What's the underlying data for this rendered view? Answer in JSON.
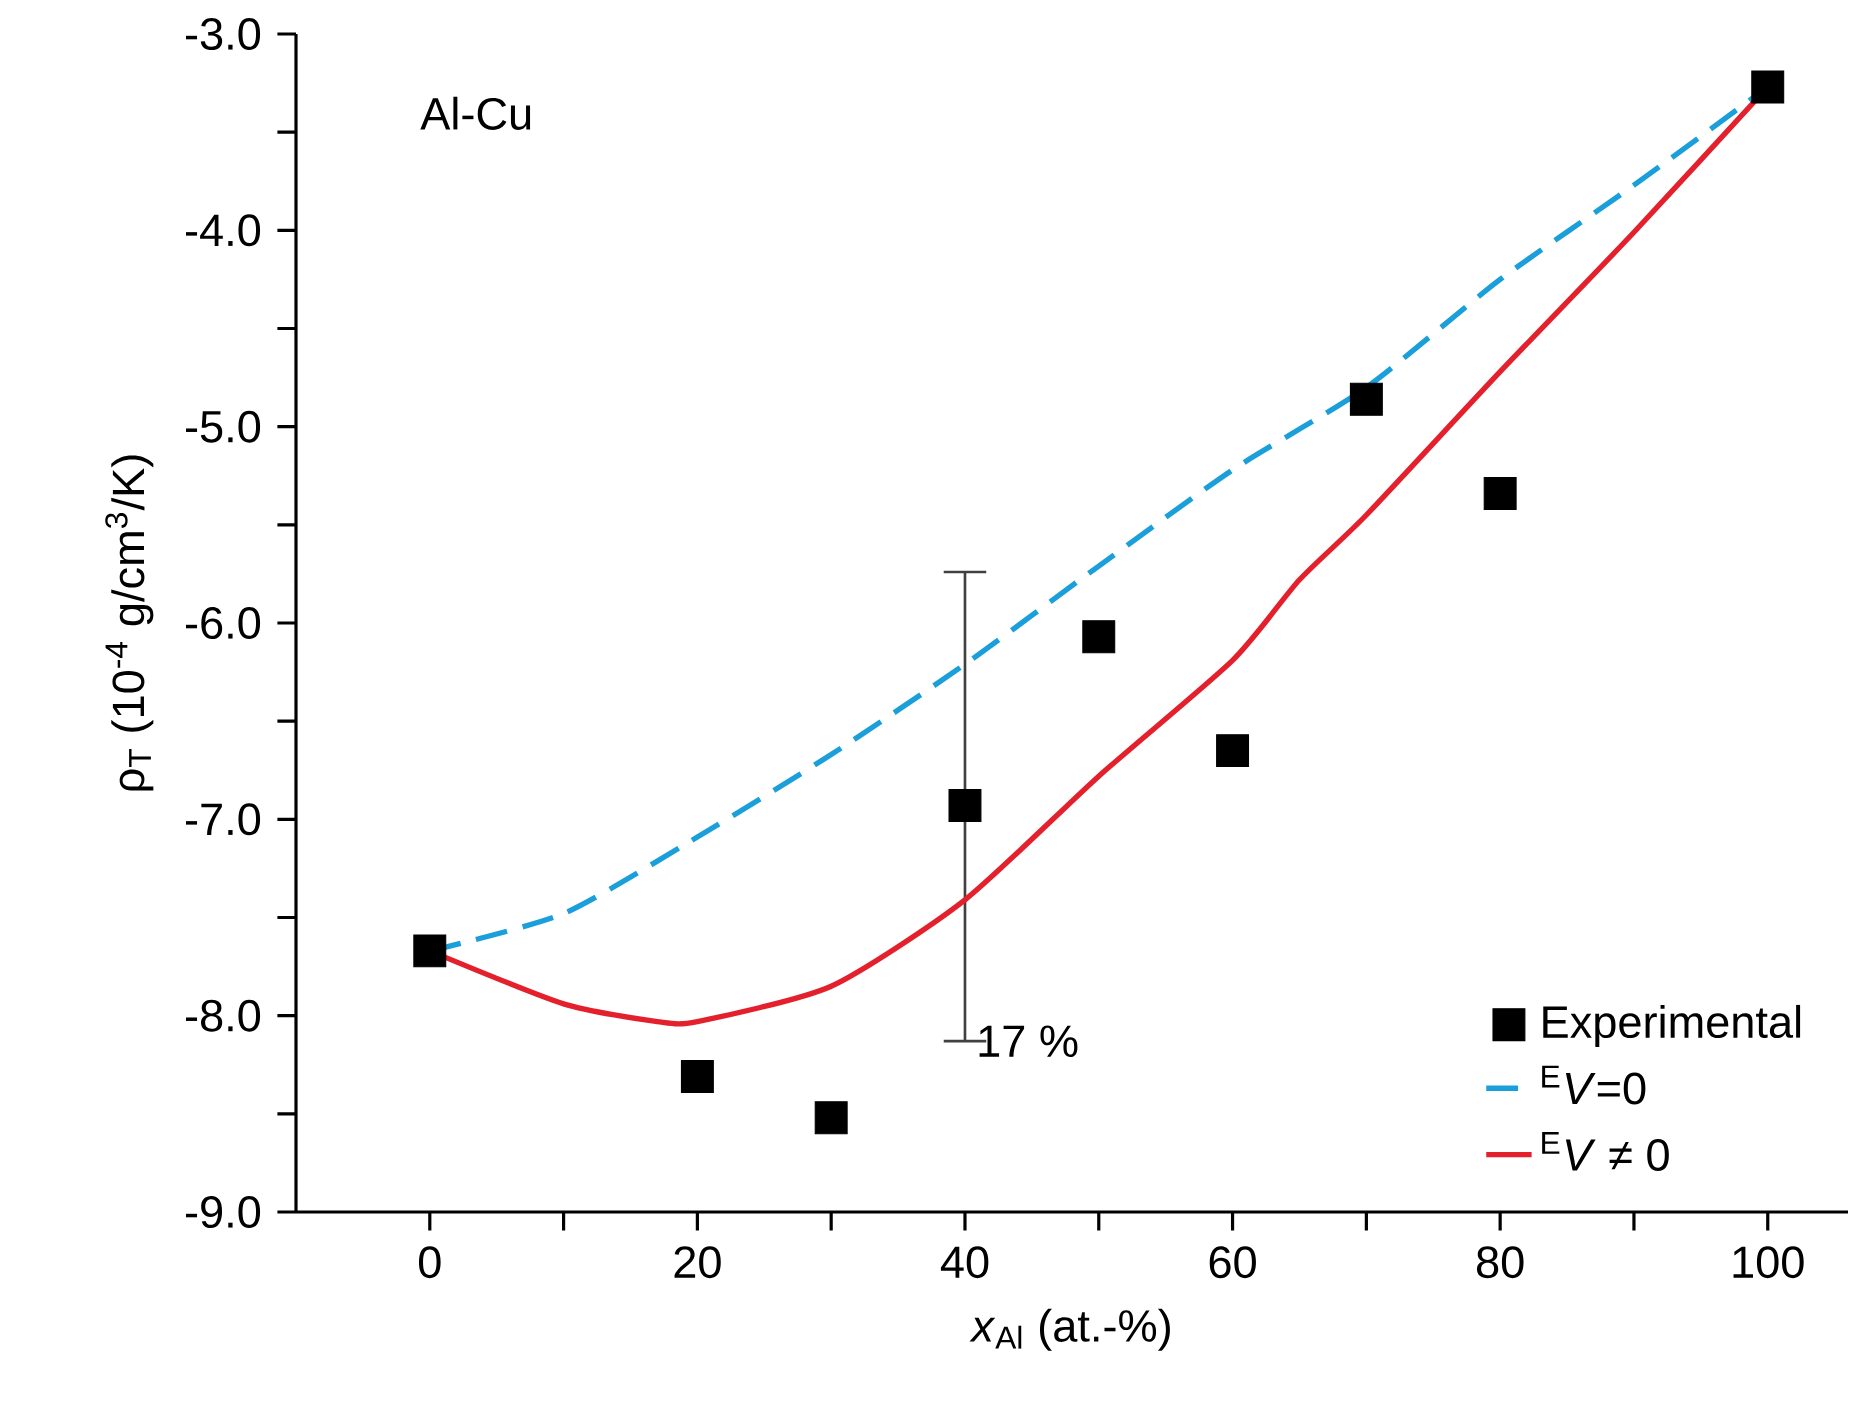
{
  "chart_data": {
    "type": "scatter",
    "xlabel": "*x*$_{Al}$ (at.-%)",
    "ylabel": "ρ$_{T}$ (10$^{-4}$ g/cm$^{3}$/K)",
    "xlim": [
      -10,
      106
    ],
    "ylim": [
      -9,
      -3
    ],
    "xticks": [
      0,
      {
        "value": 10,
        "label": null
      },
      20,
      {
        "value": 30,
        "label": null
      },
      40,
      {
        "value": 50,
        "label": null
      },
      60,
      {
        "value": 70,
        "label": null
      },
      80,
      {
        "value": 90,
        "label": null
      },
      100
    ],
    "yticks": [
      {
        "value": -9,
        "label": "-9.0"
      },
      {
        "value": -8.5,
        "label": null
      },
      {
        "value": -8,
        "label": "-8.0"
      },
      {
        "value": -7.5,
        "label": null
      },
      {
        "value": -7,
        "label": "-7.0"
      },
      {
        "value": -6.5,
        "label": null
      },
      {
        "value": -6,
        "label": "-6.0"
      },
      {
        "value": -5.5,
        "label": null
      },
      {
        "value": -5,
        "label": "-5.0"
      },
      {
        "value": -4.5,
        "label": null
      },
      {
        "value": -4,
        "label": "-4.0"
      },
      {
        "value": -3.5,
        "label": null
      },
      {
        "value": -3,
        "label": "-3.0"
      }
    ],
    "legend": "bottom right",
    "annotations": [
      "Al-Cu",
      {
        "text": "17 %",
        "x": 40,
        "y": -8.13
      }
    ],
    "series": [
      {
        "name": "Experimental",
        "marker": "square",
        "color": "#000000",
        "x": [
          0,
          20,
          30,
          40,
          50,
          60,
          70,
          80,
          100
        ],
        "values": [
          -7.67,
          -8.31,
          -8.52,
          -6.93,
          -6.07,
          -6.65,
          -4.86,
          -5.34,
          -3.27
        ],
        "errors": [
          null,
          null,
          null,
          [
            -8.13,
            -5.74
          ],
          null,
          null,
          null,
          null,
          null
        ]
      },
      {
        "name": "$^{E}$*V*=0",
        "type": "line",
        "line_style": "dashed",
        "color": "#1a9fdb",
        "x": [
          0,
          10,
          20,
          30,
          40,
          50,
          60,
          70,
          80,
          90,
          100
        ],
        "values": [
          -7.67,
          -7.48,
          -7.09,
          -6.67,
          -6.21,
          -5.71,
          -5.22,
          -4.8,
          -4.25,
          -3.77,
          -3.27
        ]
      },
      {
        "name": "$^{E}$*V* ≠ 0",
        "type": "line",
        "line_style": "solid",
        "color": "#e3202b",
        "x": [
          0,
          10,
          17,
          20,
          30,
          40,
          50,
          60,
          65,
          70,
          80,
          90,
          100
        ],
        "values": [
          -7.67,
          -7.94,
          -8.03,
          -8.03,
          -7.85,
          -7.41,
          -6.78,
          -6.19,
          -5.78,
          -5.45,
          -4.72,
          -4.01,
          -3.27
        ]
      }
    ]
  }
}
